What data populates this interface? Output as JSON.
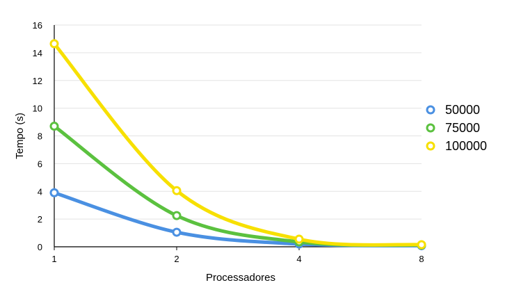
{
  "chart_data": {
    "type": "line",
    "title": "",
    "xlabel": "Processadores",
    "ylabel": "Tempo (s)",
    "x": [
      "1",
      "2",
      "4",
      "8"
    ],
    "ylim": [
      0,
      16
    ],
    "yticks": [
      "0",
      "2",
      "4",
      "6",
      "8",
      "10",
      "12",
      "14",
      "16"
    ],
    "grid": true,
    "legend_position": "right",
    "series": [
      {
        "name": "50000",
        "values": [
          3.9,
          1.05,
          0.2,
          0.08
        ],
        "color": "#4a90e2"
      },
      {
        "name": "75000",
        "values": [
          8.7,
          2.25,
          0.35,
          0.12
        ],
        "color": "#5bc13f"
      },
      {
        "name": "100000",
        "values": [
          14.65,
          4.05,
          0.55,
          0.15
        ],
        "color": "#f7e000"
      }
    ]
  }
}
